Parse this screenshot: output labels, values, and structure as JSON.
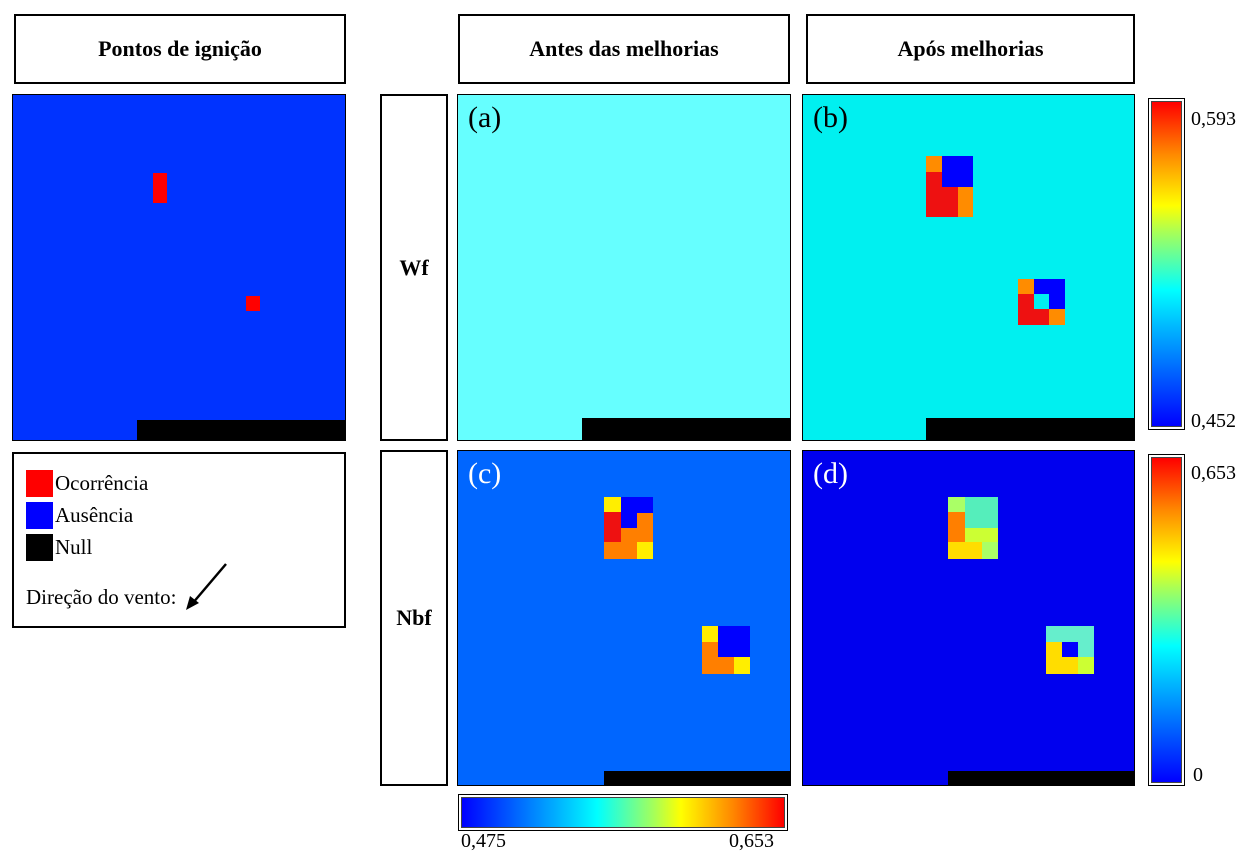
{
  "headers": {
    "ignition": "Pontos de ignição",
    "before": "Antes das melhorias",
    "after": "Após melhorias"
  },
  "rows": {
    "wf": "Wf",
    "nbf": "Nbf"
  },
  "panels": {
    "a": "(a)",
    "b": "(b)",
    "c": "(c)",
    "d": "(d)"
  },
  "colorbars": {
    "wf": {
      "max": "0,593",
      "min": "0,452"
    },
    "nbf_after": {
      "max": "0,653",
      "min": "0"
    },
    "nbf_before": {
      "min": "0,475",
      "max": "0,653"
    }
  },
  "legend": {
    "occurrence": "Ocorrência",
    "absence": "Ausência",
    "null": "Null",
    "wind": "Direção do vento:"
  },
  "colors": {
    "occurrence": "#ff0000",
    "absence": "#0000ff",
    "null": "#000000",
    "cyan_light": "#66ffff",
    "cyan": "#00f0f0",
    "blue_mid": "#0066ff",
    "blue_dark": "#0000ee"
  },
  "icons": [
    "wind-direction-arrow-icon"
  ]
}
